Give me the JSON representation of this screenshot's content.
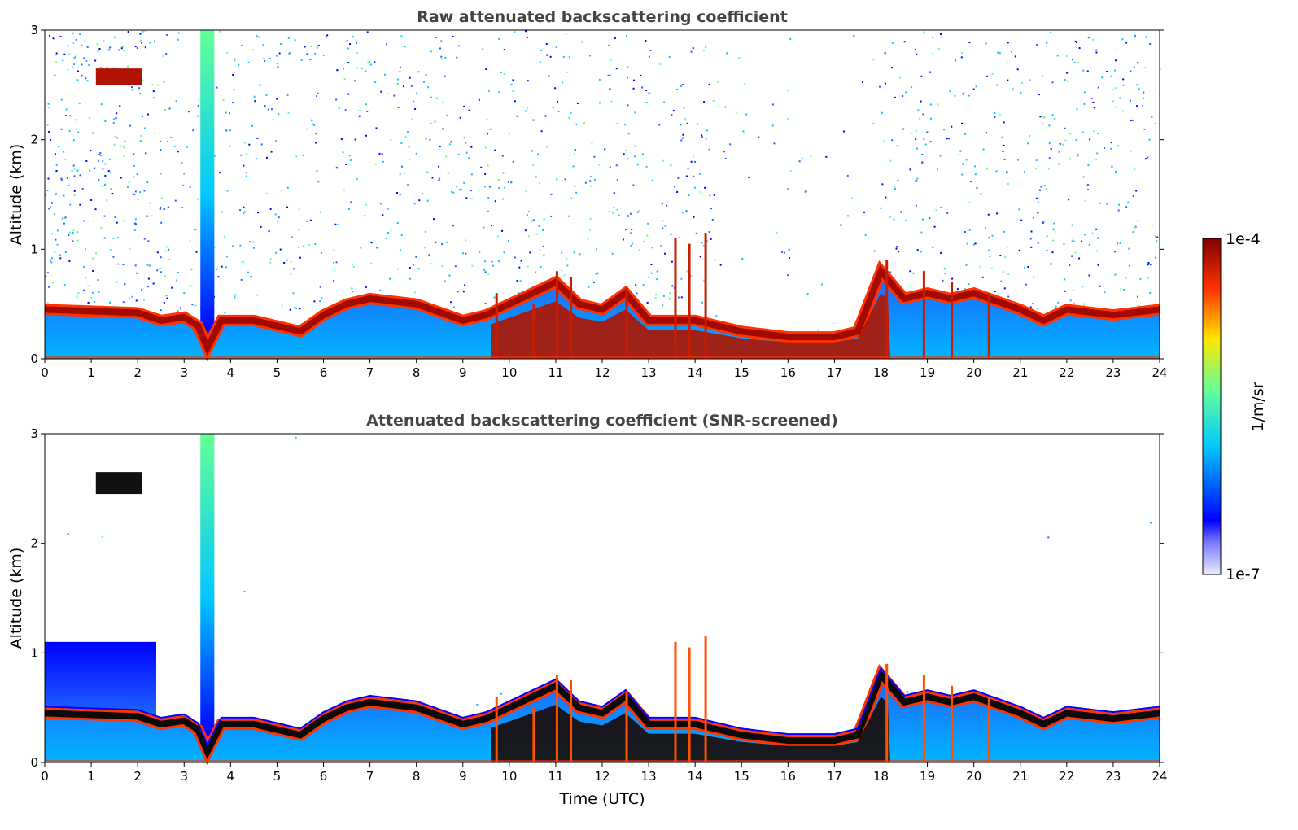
{
  "chart_data": [
    {
      "type": "heatmap",
      "title": "Raw attenuated backscattering coefficient",
      "xlabel": "",
      "ylabel": "Altitude (km)",
      "xlim": [
        0,
        24
      ],
      "ylim": [
        0,
        3
      ],
      "xticks": [
        "0",
        "1",
        "2",
        "3",
        "4",
        "5",
        "6",
        "7",
        "8",
        "9",
        "10",
        "11",
        "12",
        "13",
        "14",
        "15",
        "16",
        "17",
        "18",
        "19",
        "20",
        "21",
        "22",
        "23",
        "24"
      ],
      "yticks": [
        "0",
        "1",
        "2",
        "3"
      ],
      "noise": "high",
      "layer_top_km": [
        [
          0,
          0.45
        ],
        [
          2,
          0.42
        ],
        [
          2.5,
          0.35
        ],
        [
          3,
          0.38
        ],
        [
          3.3,
          0.3
        ],
        [
          3.5,
          0.1
        ],
        [
          3.8,
          0.35
        ],
        [
          4.5,
          0.35
        ],
        [
          5,
          0.3
        ],
        [
          5.5,
          0.25
        ],
        [
          6,
          0.4
        ],
        [
          6.5,
          0.5
        ],
        [
          7,
          0.55
        ],
        [
          8,
          0.5
        ],
        [
          9,
          0.35
        ],
        [
          9.5,
          0.4
        ],
        [
          10,
          0.5
        ],
        [
          11,
          0.7
        ],
        [
          11.5,
          0.5
        ],
        [
          12,
          0.45
        ],
        [
          12.5,
          0.6
        ],
        [
          13,
          0.35
        ],
        [
          14,
          0.35
        ],
        [
          15,
          0.25
        ],
        [
          16,
          0.2
        ],
        [
          17,
          0.2
        ],
        [
          17.5,
          0.25
        ],
        [
          18,
          0.8
        ],
        [
          18.5,
          0.55
        ],
        [
          19,
          0.6
        ],
        [
          19.5,
          0.55
        ],
        [
          20,
          0.6
        ],
        [
          21,
          0.45
        ],
        [
          21.5,
          0.35
        ],
        [
          22,
          0.45
        ],
        [
          23,
          0.4
        ],
        [
          24,
          0.45
        ]
      ],
      "features": [
        {
          "label": "elevated-cloud",
          "x": [
            1.1,
            2.1
          ],
          "y": [
            2.5,
            2.65
          ]
        },
        {
          "label": "plume",
          "x": [
            3.35,
            3.65
          ],
          "y": [
            0,
            3
          ]
        }
      ]
    },
    {
      "type": "heatmap",
      "title": "Attenuated backscattering coefficient (SNR-screened)",
      "xlabel": "Time (UTC)",
      "ylabel": "Altitude (km)",
      "xlim": [
        0,
        24
      ],
      "ylim": [
        0,
        3
      ],
      "xticks": [
        "0",
        "1",
        "2",
        "3",
        "4",
        "5",
        "6",
        "7",
        "8",
        "9",
        "10",
        "11",
        "12",
        "13",
        "14",
        "15",
        "16",
        "17",
        "18",
        "19",
        "20",
        "21",
        "22",
        "23",
        "24"
      ],
      "yticks": [
        "0",
        "1",
        "2",
        "3"
      ],
      "noise": "low",
      "layer_top_km": [
        [
          0,
          0.45
        ],
        [
          2,
          0.42
        ],
        [
          2.5,
          0.35
        ],
        [
          3,
          0.38
        ],
        [
          3.3,
          0.3
        ],
        [
          3.5,
          0.1
        ],
        [
          3.8,
          0.35
        ],
        [
          4.5,
          0.35
        ],
        [
          5,
          0.3
        ],
        [
          5.5,
          0.25
        ],
        [
          6,
          0.4
        ],
        [
          6.5,
          0.5
        ],
        [
          7,
          0.55
        ],
        [
          8,
          0.5
        ],
        [
          9,
          0.35
        ],
        [
          9.5,
          0.4
        ],
        [
          10,
          0.5
        ],
        [
          11,
          0.7
        ],
        [
          11.5,
          0.5
        ],
        [
          12,
          0.45
        ],
        [
          12.5,
          0.6
        ],
        [
          13,
          0.35
        ],
        [
          14,
          0.35
        ],
        [
          15,
          0.25
        ],
        [
          16,
          0.2
        ],
        [
          17,
          0.2
        ],
        [
          17.5,
          0.25
        ],
        [
          18,
          0.8
        ],
        [
          18.5,
          0.55
        ],
        [
          19,
          0.6
        ],
        [
          19.5,
          0.55
        ],
        [
          20,
          0.6
        ],
        [
          21,
          0.45
        ],
        [
          21.5,
          0.35
        ],
        [
          22,
          0.45
        ],
        [
          23,
          0.4
        ],
        [
          24,
          0.45
        ]
      ],
      "features": [
        {
          "label": "elevated-cloud",
          "x": [
            1.1,
            2.1
          ],
          "y": [
            2.45,
            2.65
          ]
        },
        {
          "label": "plume",
          "x": [
            3.35,
            3.65
          ],
          "y": [
            0,
            3
          ]
        },
        {
          "label": "aerosol-region",
          "x": [
            0,
            2.4
          ],
          "y": [
            0,
            1.1
          ]
        }
      ]
    }
  ],
  "colorbar": {
    "label": "1/m/sr",
    "max_label": "1e-4",
    "min_label": "1e-7",
    "scale": "log",
    "range": [
      1e-07,
      0.0001
    ],
    "colormap": "jet",
    "colors": [
      "#ebebff",
      "#0000ff",
      "#00c8ff",
      "#64ff96",
      "#ffe600",
      "#ff3200",
      "#800000"
    ]
  }
}
